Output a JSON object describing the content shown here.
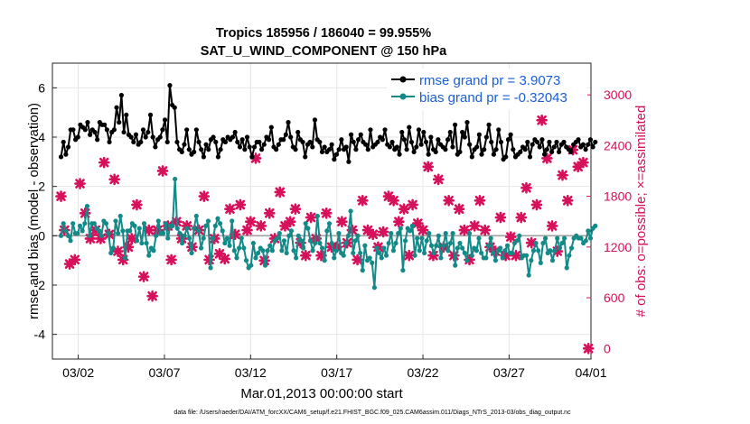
{
  "chart_data": {
    "type": "line",
    "title_line1": "Tropics 185956 / 186040 = 99.955%",
    "title_line2": "SAT_U_WIND_COMPONENT @ 150 hPa",
    "ylabel": "rmse and bias (model - observation)",
    "ylabel_right": "# of obs: o=possible; ×=assimilated",
    "xlabel": "Mar.01,2013 00:00:00 start",
    "footer": "data file: /Users/raeder/DAI/ATM_forcXX/CAM6_setup/f.e21.FHIST_BGC.f09_025.CAM6assim.011/Diags_NTrS_2013-03/obs_diag_output.nc",
    "xlim": [
      0.5,
      31.75
    ],
    "ylim": [
      -5,
      7
    ],
    "ylim_right": [
      -125,
      3375
    ],
    "x_ticks": [
      {
        "value": 2,
        "label": "03/02"
      },
      {
        "value": 7,
        "label": "03/07"
      },
      {
        "value": 12,
        "label": "03/12"
      },
      {
        "value": 17,
        "label": "03/17"
      },
      {
        "value": 22,
        "label": "03/22"
      },
      {
        "value": 27,
        "label": "03/27"
      },
      {
        "value": 32,
        "label": "04/01"
      }
    ],
    "y_ticks": [
      {
        "value": -4,
        "label": "-4"
      },
      {
        "value": -2,
        "label": "-2"
      },
      {
        "value": 0,
        "label": "0"
      },
      {
        "value": 2,
        "label": "2"
      },
      {
        "value": 4,
        "label": "4"
      },
      {
        "value": 6,
        "label": "6"
      }
    ],
    "y_ticks_right": [
      {
        "value": 0,
        "label": "0"
      },
      {
        "value": 600,
        "label": "600"
      },
      {
        "value": 1200,
        "label": "1200"
      },
      {
        "value": 1800,
        "label": "1800"
      },
      {
        "value": 2400,
        "label": "2400"
      },
      {
        "value": 3000,
        "label": "3000"
      }
    ],
    "series": [
      {
        "name": "rmse grand pr = 3.9073",
        "color": "#000000",
        "axis": "left",
        "values": [
          3.2,
          3.8,
          3.3,
          3.6,
          4.3,
          4.3,
          3.9,
          4.0,
          4.5,
          4.4,
          4.3,
          4.6,
          4.1,
          4.3,
          4.2,
          3.9,
          4.6,
          4.5,
          4.5,
          4.3,
          3.8,
          4.2,
          4.3,
          5.2,
          4.6,
          5.7,
          4.2,
          4.9,
          4.1,
          4.0,
          3.8,
          4.1,
          3.7,
          3.8,
          4.3,
          4.0,
          4.2,
          4.9,
          4.0,
          3.6,
          3.9,
          4.0,
          4.3,
          4.7,
          3.8,
          6.1,
          5.3,
          5.2,
          3.8,
          3.5,
          3.4,
          3.7,
          4.3,
          3.5,
          3.3,
          3.4,
          4.3,
          3.8,
          3.5,
          3.2,
          3.7,
          3.5,
          3.9,
          4.0,
          3.8,
          3.2,
          3.5,
          3.9,
          3.8,
          4.0,
          3.9,
          4.0,
          4.2,
          3.8,
          3.6,
          3.9,
          3.5,
          4.0,
          3.6,
          3.2,
          3.6,
          3.8,
          3.8,
          3.5,
          3.7,
          4.0,
          3.9,
          4.4,
          3.6,
          3.5,
          3.7,
          3.9,
          3.9,
          4.1,
          4.6,
          4.0,
          3.6,
          3.5,
          4.2,
          3.9,
          3.8,
          3.2,
          3.7,
          3.8,
          3.6,
          4.7,
          3.9,
          3.8,
          3.4,
          3.6,
          3.4,
          3.5,
          3.7,
          3.1,
          3.3,
          3.5,
          3.9,
          3.5,
          3.6,
          3.0,
          4.1,
          3.8,
          3.5,
          3.9,
          4.1,
          3.8,
          3.7,
          3.5,
          4.3,
          3.6,
          3.7,
          3.8,
          4.0,
          3.9,
          4.3,
          3.7,
          3.6,
          3.8,
          3.5,
          3.6,
          3.3,
          4.2,
          3.9,
          3.5,
          4.4,
          3.8,
          3.4,
          3.6,
          4.3,
          3.7,
          4.2,
          3.8,
          3.3,
          4.0,
          3.5,
          3.4,
          3.9,
          3.7,
          3.6,
          3.5,
          3.9,
          4.2,
          3.6,
          4.5,
          3.3,
          3.4,
          4.2,
          4.0,
          4.6,
          3.7,
          3.2,
          3.5,
          3.6,
          4.1,
          3.3,
          3.5,
          4.0,
          4.5,
          3.8,
          3.3,
          3.5,
          4.3,
          3.8,
          3.1,
          3.2,
          3.9,
          4.1,
          3.5,
          3.2,
          3.3,
          3.4,
          3.6,
          3.5,
          3.8,
          3.2,
          3.7,
          3.9,
          3.8,
          3.6,
          3.9,
          3.3,
          3.5,
          3.8,
          3.4,
          3.6,
          3.8,
          3.4,
          3.7,
          3.8,
          3.6,
          3.5,
          3.4,
          3.7,
          3.8,
          3.9,
          3.6,
          3.7,
          3.5,
          3.7,
          3.9,
          3.6,
          3.8
        ]
      },
      {
        "name": "bias grand pr = -0.32043",
        "color": "#138a88",
        "axis": "left",
        "values": [
          0.0,
          0.5,
          0.2,
          0.0,
          -0.2,
          0.5,
          0.1,
          0.1,
          0.4,
          0.2,
          0.5,
          1.2,
          0.0,
          0.5,
          0.5,
          0.3,
          0.2,
          0.0,
          0.6,
          0.5,
          0.1,
          -0.7,
          -0.5,
          0.6,
          0.1,
          0.8,
          0.2,
          -0.9,
          0.2,
          0.2,
          0.5,
          0.4,
          -0.2,
          0.3,
          -0.3,
          0.5,
          -0.3,
          -0.8,
          -0.5,
          -0.6,
          0.0,
          0.6,
          0.1,
          0.1,
          0.5,
          -0.1,
          0.4,
          0.4,
          2.3,
          0.3,
          0.1,
          -0.3,
          0.0,
          0.3,
          -0.1,
          -0.7,
          0.3,
          0.8,
          0.2,
          -0.5,
          -0.1,
          0.4,
          0.6,
          -1.3,
          -0.1,
          0.4,
          0.7,
          0.5,
          0.2,
          -0.3,
          -0.1,
          -0.4,
          0.6,
          -0.6,
          -0.9,
          -0.5,
          -0.1,
          -0.5,
          -1.0,
          -1.3,
          -1.2,
          -0.3,
          -0.9,
          -0.7,
          -0.5,
          -0.6,
          -1.2,
          -0.6,
          -0.4,
          -0.6,
          -0.2,
          -0.1,
          0.1,
          -0.6,
          -0.2,
          -0.7,
          0.0,
          0.2,
          -0.6,
          -0.9,
          0.0,
          -0.2,
          -0.5,
          0.5,
          0.3,
          -0.2,
          -0.6,
          -0.3,
          0.8,
          -0.3,
          -0.5,
          -1.0,
          0.2,
          0.5,
          -0.3,
          -0.9,
          -0.6,
          0.1,
          -0.7,
          -0.8,
          -0.3,
          0.0,
          1.0,
          -0.7,
          -0.2,
          0.0,
          -0.7,
          -1.4,
          -0.4,
          -1.0,
          -0.9,
          -1.1,
          -2.1,
          -0.5,
          -0.7,
          -0.9,
          -0.5,
          -0.8,
          -0.3,
          0.1,
          -0.6,
          -0.3,
          0.1,
          0.3,
          -1.4,
          -0.2,
          0.3,
          0.2,
          0.4,
          -0.8,
          -0.1,
          -0.6,
          -0.1,
          -0.7,
          -0.2,
          0.1,
          -0.4,
          -0.7,
          -0.4,
          0.0,
          -0.9,
          -0.4,
          0.1,
          -0.6,
          -0.3,
          0.1,
          -1.2,
          -0.5,
          -0.3,
          -0.5,
          -0.7,
          -1.0,
          0.1,
          -0.8,
          -0.5,
          -0.6,
          -0.1,
          -0.7,
          -0.9,
          -0.9,
          -0.4,
          -0.1,
          -0.7,
          -1.0,
          -0.6,
          -0.5,
          -0.9,
          -0.6,
          -0.4,
          -0.7,
          -0.7,
          -0.3,
          -0.2,
          0.0,
          -0.9,
          -0.8,
          -0.8,
          -1.6,
          -1.0,
          -0.6,
          -0.3,
          -0.6,
          -1.1,
          -0.3,
          -0.1,
          -0.7,
          -0.6,
          -1.0,
          -0.6,
          -0.1,
          -0.5,
          -0.3,
          -0.1,
          -1.3,
          -0.8,
          -0.5,
          -0.1,
          0.0,
          -0.1,
          -0.1,
          -0.3,
          -0.2,
          0.2,
          -0.1,
          0.3,
          0.4
        ]
      }
    ],
    "obs_points": {
      "name": "# of obs (possible / assimilated)",
      "color": "#d6105a",
      "axis": "right",
      "x": [
        1,
        1.2,
        1.5,
        1.8,
        2.1,
        2.4,
        2.7,
        3.0,
        3.3,
        3.5,
        3.8,
        4.1,
        4.3,
        4.6,
        4.9,
        5.1,
        5.4,
        5.8,
        6.1,
        6.3,
        6.6,
        6.9,
        7.2,
        7.4,
        7.7,
        8.0,
        8.3,
        8.6,
        9.0,
        9.3,
        9.6,
        9.9,
        10.2,
        10.5,
        10.8,
        11.1,
        11.4,
        11.8,
        12.0,
        12.3,
        12.6,
        12.8,
        13.1,
        13.4,
        13.7,
        14.0,
        14.3,
        14.6,
        14.9,
        15.2,
        15.5,
        15.8,
        16.1,
        16.4,
        16.7,
        17.0,
        17.3,
        17.6,
        17.9,
        18.2,
        18.5,
        18.8,
        19.1,
        19.4,
        19.7,
        20.0,
        20.3,
        20.6,
        20.9,
        21.2,
        21.4,
        21.7,
        22.0,
        22.3,
        22.6,
        22.9,
        23.2,
        23.5,
        23.8,
        24.1,
        24.4,
        24.7,
        25.0,
        25.3,
        25.6,
        25.9,
        26.2,
        26.5,
        26.8,
        27.1,
        27.4,
        27.7,
        28.0,
        28.3,
        28.6,
        28.9,
        29.2,
        29.5,
        29.8,
        30.1,
        30.4,
        30.7,
        31.0,
        31.3,
        31.6
      ],
      "values": [
        1800,
        1400,
        1000,
        1050,
        1950,
        1600,
        1300,
        1400,
        1300,
        2200,
        1350,
        2000,
        1150,
        1050,
        1200,
        1300,
        1700,
        850,
        1400,
        620,
        1400,
        2100,
        1450,
        1050,
        1500,
        1300,
        1450,
        1200,
        1400,
        1800,
        1050,
        1300,
        1120,
        1060,
        1650,
        1350,
        1700,
        1400,
        1500,
        2250,
        1450,
        1040,
        1600,
        1300,
        1850,
        1450,
        1500,
        1650,
        1250,
        1100,
        1550,
        1300,
        1100,
        1600,
        1200,
        1200,
        1500,
        1250,
        1400,
        1050,
        1750,
        1400,
        1350,
        1200,
        1380,
        1800,
        1750,
        1500,
        1650,
        1100,
        1700,
        1480,
        1400,
        2150,
        1100,
        2000,
        1200,
        1750,
        1100,
        1650,
        1400,
        1050,
        1450,
        1750,
        1400,
        1200,
        1150,
        1550,
        1100,
        1320,
        1100,
        1550,
        1900,
        1250,
        1700,
        2700,
        2250,
        1450,
        1150,
        2050,
        1750,
        2350,
        2150,
        2200,
        0
      ]
    }
  }
}
